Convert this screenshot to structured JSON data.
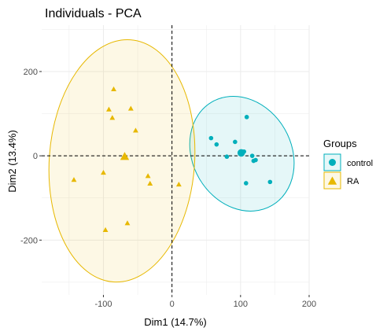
{
  "chart_data": {
    "type": "scatter",
    "title": "Individuals - PCA",
    "xlabel": "Dim1 (14.7%)",
    "ylabel": "Dim2 (13.4%)",
    "xlim": [
      -190,
      200
    ],
    "ylim": [
      -330,
      310
    ],
    "xticks": [
      -100,
      0,
      100,
      200
    ],
    "yticks": [
      -200,
      0,
      200
    ],
    "xtick_labels": [
      "-100",
      "0",
      "100",
      "200"
    ],
    "ytick_labels": [
      "-200",
      "0",
      "200"
    ],
    "grid": true,
    "legend": {
      "title": "Groups",
      "placement": "right"
    },
    "series": [
      {
        "name": "control",
        "color": "#00AFBB",
        "marker": "circle",
        "points": [
          [
            109,
            92
          ],
          [
            57,
            42
          ],
          [
            65,
            27
          ],
          [
            92,
            33
          ],
          [
            80,
            -2
          ],
          [
            105,
            10
          ],
          [
            117,
            0
          ],
          [
            122,
            -10
          ],
          [
            119,
            -12
          ],
          [
            108,
            -65
          ],
          [
            143,
            -62
          ]
        ],
        "centroid": [
          101,
          7
        ],
        "ellipse": {
          "cx": 102,
          "cy": 5,
          "rx": 72,
          "ry": 142,
          "angle": -30
        }
      },
      {
        "name": "RA",
        "color": "#E7B800",
        "marker": "triangle",
        "points": [
          [
            -85,
            158
          ],
          [
            -92,
            110
          ],
          [
            -60,
            112
          ],
          [
            -87,
            90
          ],
          [
            -53,
            60
          ],
          [
            -100,
            -40
          ],
          [
            -143,
            -57
          ],
          [
            -35,
            -48
          ],
          [
            -32,
            -66
          ],
          [
            10,
            -68
          ],
          [
            -65,
            -160
          ],
          [
            -97,
            -176
          ]
        ],
        "centroid": [
          -69,
          -2
        ],
        "ellipse": {
          "cx": -73,
          "cy": -12,
          "rx": 106,
          "ry": 288,
          "angle": 4
        }
      }
    ]
  }
}
